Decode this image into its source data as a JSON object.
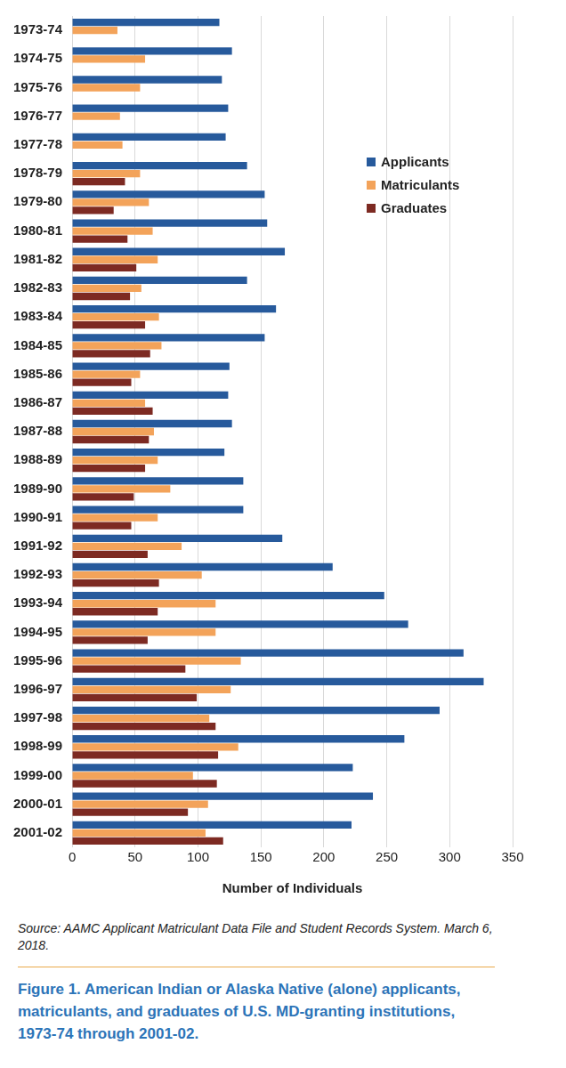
{
  "chart_data": {
    "type": "bar",
    "orientation": "horizontal",
    "title": "Figure 1. American Indian or Alaska Native (alone) applicants, matriculants, and graduates of U.S. MD-granting institutions, 1973-74 through 2001-02.",
    "source": "Source: AAMC Applicant Matriculant Data File and Student Records System. March 6, 2018.",
    "x_label": "Number of Individuals",
    "categories": [
      "1973-74",
      "1974-75",
      "1975-76",
      "1976-77",
      "1977-78",
      "1978-79",
      "1979-80",
      "1980-81",
      "1981-82",
      "1982-83",
      "1983-84",
      "1984-85",
      "1985-86",
      "1986-87",
      "1987-88",
      "1988-89",
      "1989-90",
      "1990-91",
      "1991-92",
      "1992-93",
      "1993-94",
      "1994-95",
      "1995-96",
      "1996-97",
      "1997-98",
      "1998-99",
      "1999-00",
      "2000-01",
      "2001-02"
    ],
    "series": [
      {
        "name": "Applicants",
        "color": "#275a9c",
        "values": [
          117,
          127,
          119,
          124,
          122,
          139,
          153,
          155,
          169,
          139,
          162,
          153,
          125,
          124,
          127,
          121,
          136,
          136,
          167,
          207,
          248,
          267,
          311,
          327,
          292,
          264,
          223,
          239,
          222
        ]
      },
      {
        "name": "Matriculants",
        "color": "#f3a35a",
        "values": [
          36,
          58,
          54,
          38,
          40,
          54,
          61,
          64,
          68,
          55,
          69,
          71,
          54,
          58,
          65,
          68,
          78,
          68,
          87,
          103,
          114,
          114,
          134,
          126,
          109,
          132,
          96,
          108,
          106
        ]
      },
      {
        "name": "Graduates",
        "color": "#7d2a22",
        "values": [
          null,
          null,
          null,
          null,
          null,
          42,
          33,
          44,
          51,
          46,
          58,
          62,
          47,
          64,
          61,
          58,
          49,
          47,
          60,
          69,
          68,
          60,
          90,
          99,
          114,
          116,
          115,
          92,
          120
        ]
      }
    ],
    "xlim": [
      0,
      350
    ],
    "xticks": [
      0,
      50,
      100,
      150,
      200,
      250,
      300,
      350
    ],
    "grid": true,
    "legend": "upper right"
  }
}
